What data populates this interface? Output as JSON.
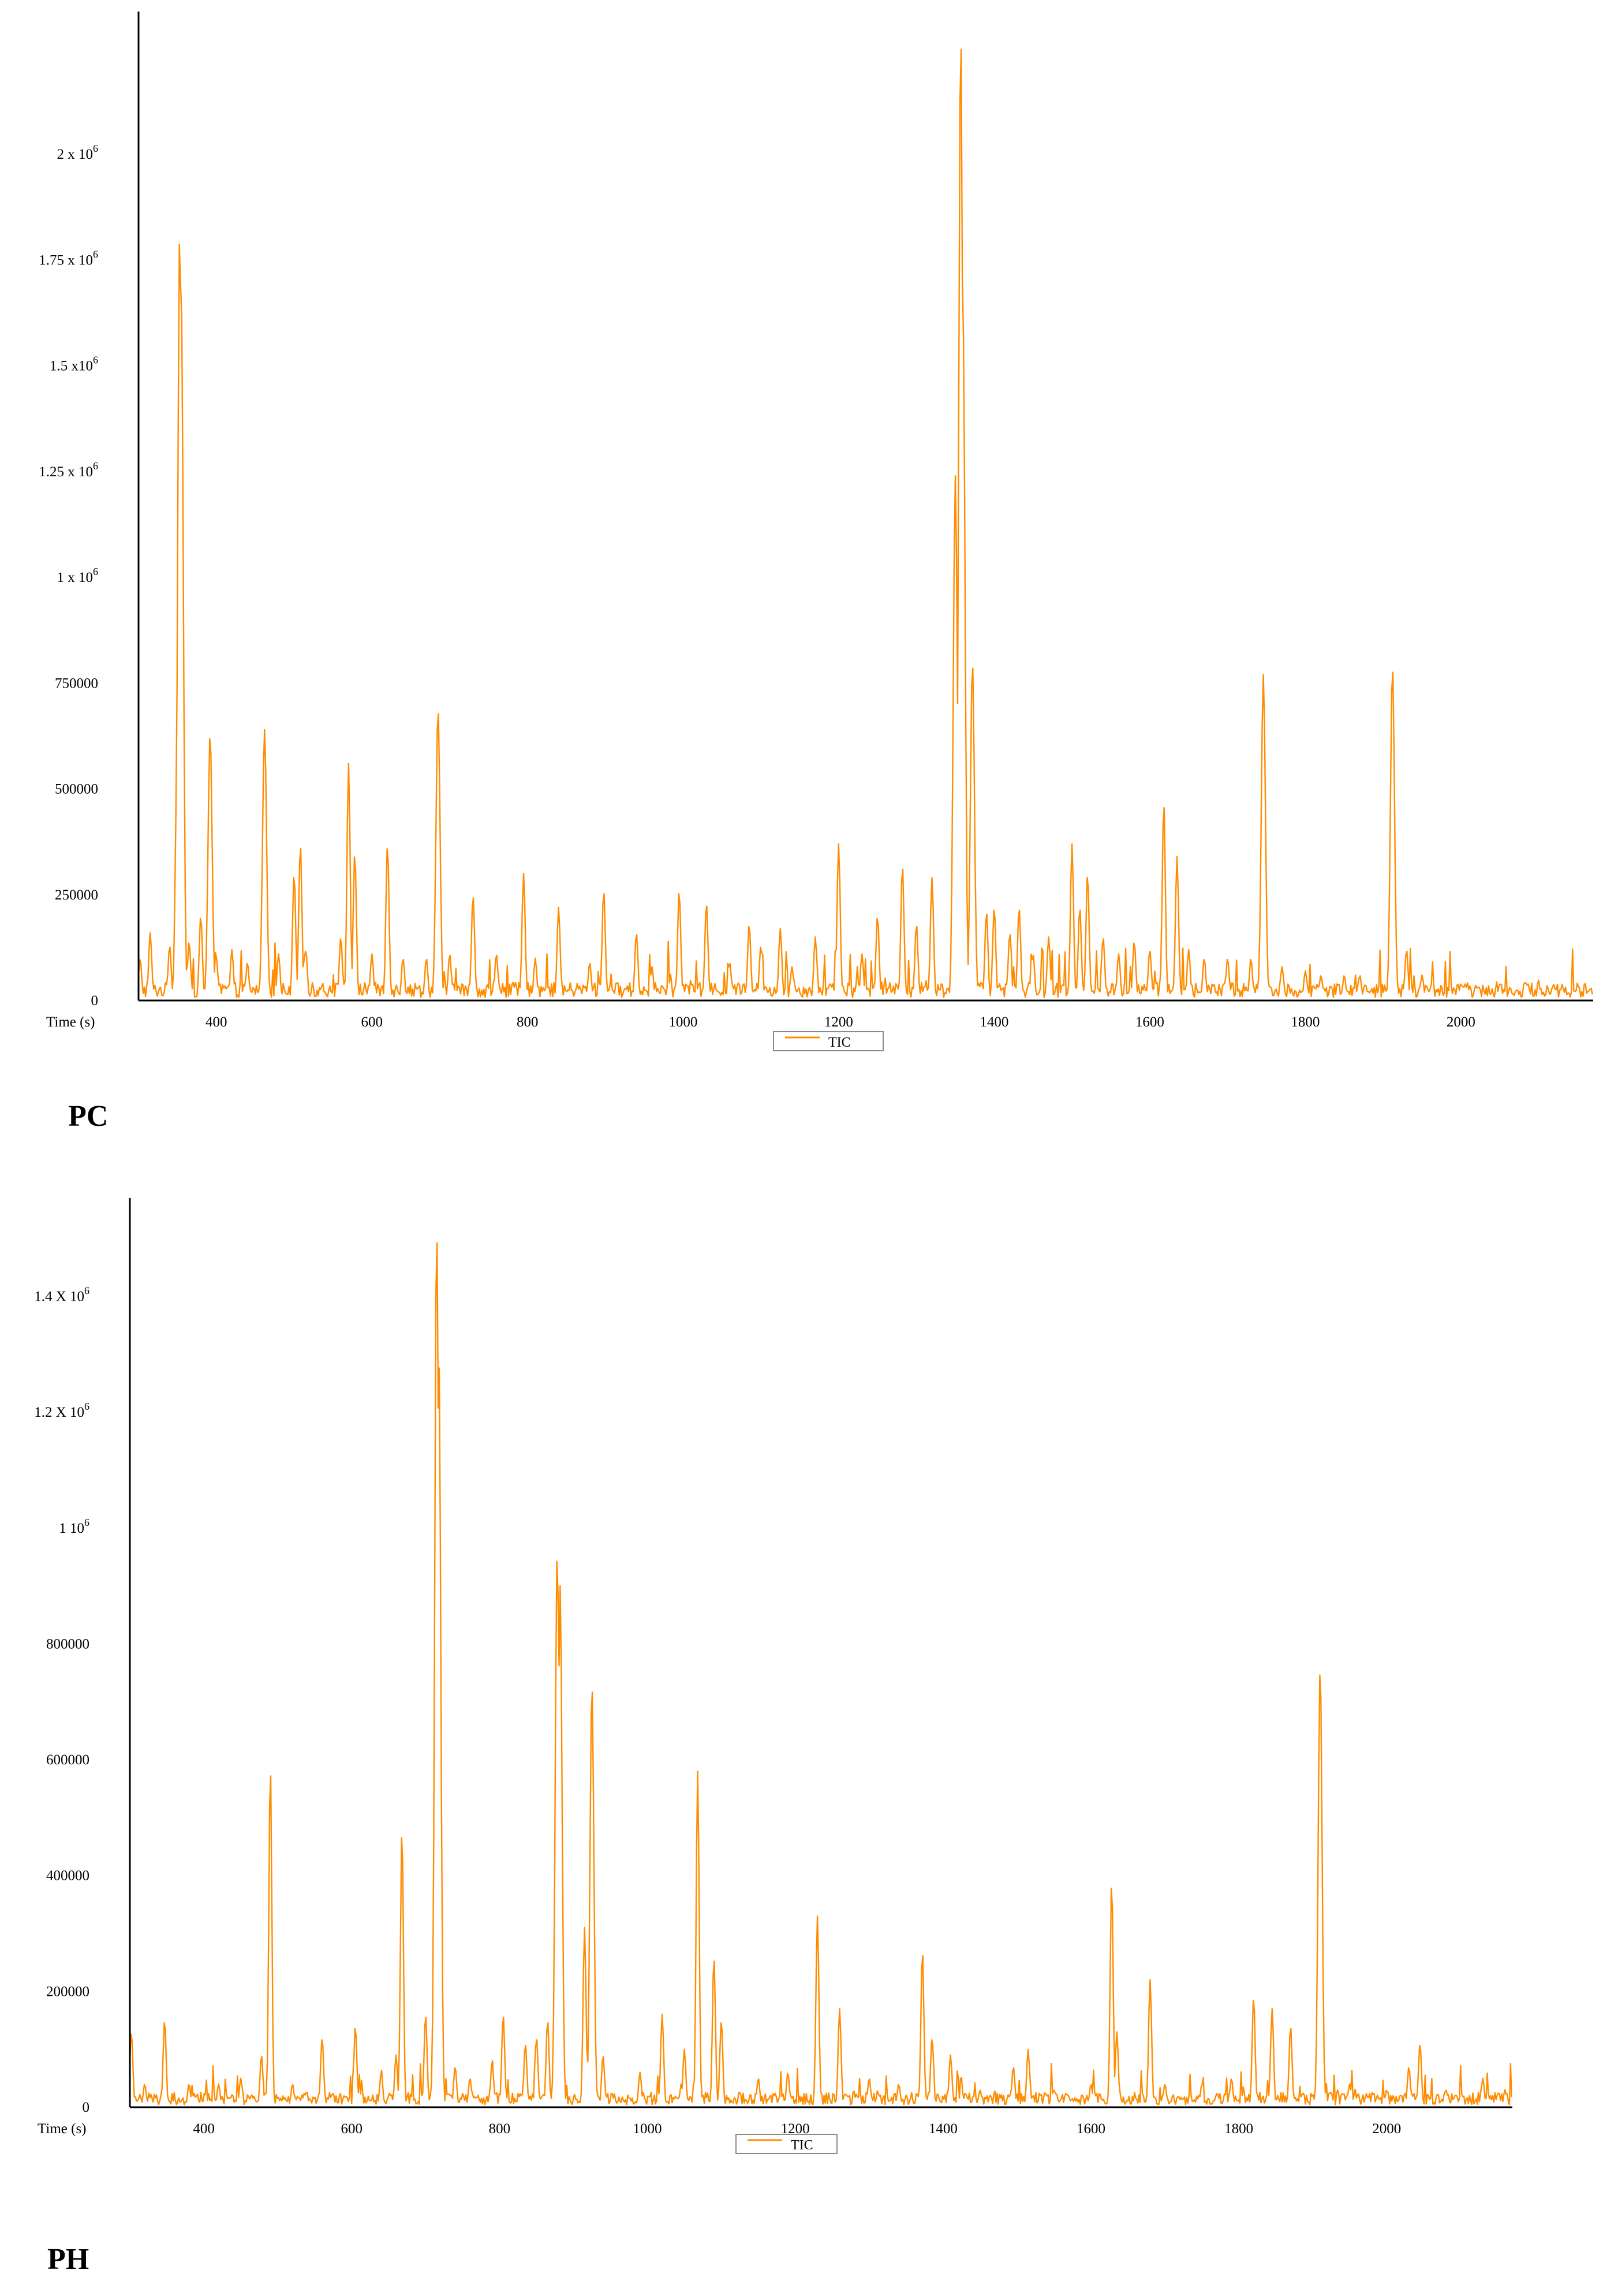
{
  "chart_data": [
    {
      "type": "line",
      "panel_label": "PC",
      "xlabel": "Time (s)",
      "xlim": [
        300,
        2170
      ],
      "ylim": [
        0,
        2310000
      ],
      "x_ticks": [
        400,
        600,
        800,
        1000,
        1200,
        1400,
        1600,
        1800,
        2000
      ],
      "y_ticks": [
        {
          "value": 0,
          "text": "0"
        },
        {
          "value": 250000,
          "text": "250000"
        },
        {
          "value": 500000,
          "text": "500000"
        },
        {
          "value": 750000,
          "text": "750000"
        },
        {
          "value": 1000000,
          "text": "1 x 10",
          "sup": "6"
        },
        {
          "value": 1250000,
          "text": "1.25 x 10",
          "sup": "6"
        },
        {
          "value": 1500000,
          "text": "1.5 x10",
          "sup": "6"
        },
        {
          "value": 1750000,
          "text": "1.75 x 10",
          "sup": "6"
        },
        {
          "value": 2000000,
          "text": "2 x 10",
          "sup": "6"
        }
      ],
      "legend": {
        "entries": [
          "TIC"
        ],
        "position": "bottom-center"
      },
      "grid": false,
      "series": [
        {
          "name": "TIC",
          "color": "#ff8c00",
          "baseline": 25000,
          "peaks": [
            [
              302,
              100000
            ],
            [
              315,
              160000
            ],
            [
              340,
              130000
            ],
            [
              349,
              500000
            ],
            [
              353,
              1820000
            ],
            [
              355,
              1650000
            ],
            [
              365,
              140000
            ],
            [
              380,
              200000
            ],
            [
              392,
              630000
            ],
            [
              400,
              100000
            ],
            [
              420,
              120000
            ],
            [
              440,
              90000
            ],
            [
              462,
              640000
            ],
            [
              480,
              110000
            ],
            [
              500,
              300000
            ],
            [
              508,
              370000
            ],
            [
              515,
              120000
            ],
            [
              560,
              150000
            ],
            [
              570,
              560000
            ],
            [
              578,
              350000
            ],
            [
              600,
              110000
            ],
            [
              620,
              370000
            ],
            [
              640,
              100000
            ],
            [
              670,
              100000
            ],
            [
              685,
              690000
            ],
            [
              700,
              110000
            ],
            [
              730,
              250000
            ],
            [
              760,
              110000
            ],
            [
              795,
              300000
            ],
            [
              810,
              100000
            ],
            [
              840,
              220000
            ],
            [
              880,
              90000
            ],
            [
              898,
              260000
            ],
            [
              940,
              160000
            ],
            [
              960,
              80000
            ],
            [
              995,
              260000
            ],
            [
              1030,
              230000
            ],
            [
              1060,
              90000
            ],
            [
              1085,
              180000
            ],
            [
              1100,
              130000
            ],
            [
              1125,
              170000
            ],
            [
              1140,
              80000
            ],
            [
              1170,
              150000
            ],
            [
              1200,
              370000
            ],
            [
              1230,
              110000
            ],
            [
              1250,
              200000
            ],
            [
              1282,
              320000
            ],
            [
              1300,
              180000
            ],
            [
              1320,
              290000
            ],
            [
              1350,
              1240000
            ],
            [
              1357,
              2290000
            ],
            [
              1360,
              1600000
            ],
            [
              1372,
              800000
            ],
            [
              1390,
              210000
            ],
            [
              1400,
              220000
            ],
            [
              1420,
              160000
            ],
            [
              1432,
              220000
            ],
            [
              1450,
              110000
            ],
            [
              1470,
              150000
            ],
            [
              1500,
              370000
            ],
            [
              1510,
              220000
            ],
            [
              1520,
              300000
            ],
            [
              1540,
              150000
            ],
            [
              1560,
              110000
            ],
            [
              1580,
              140000
            ],
            [
              1600,
              120000
            ],
            [
              1618,
              470000
            ],
            [
              1635,
              340000
            ],
            [
              1650,
              120000
            ],
            [
              1670,
              100000
            ],
            [
              1700,
              100000
            ],
            [
              1730,
              100000
            ],
            [
              1746,
              770000
            ],
            [
              1770,
              80000
            ],
            [
              1800,
              70000
            ],
            [
              1820,
              60000
            ],
            [
              1850,
              60000
            ],
            [
              1870,
              60000
            ],
            [
              1912,
              790000
            ],
            [
              1930,
              120000
            ],
            [
              1950,
              60000
            ],
            [
              2000,
              40000
            ],
            [
              2050,
              40000
            ],
            [
              2100,
              35000
            ],
            [
              2150,
              30000
            ]
          ]
        }
      ]
    },
    {
      "type": "line",
      "panel_label": "PH",
      "xlabel": "Time (s)",
      "xlim": [
        300,
        2170
      ],
      "ylim": [
        0,
        1550000
      ],
      "x_ticks": [
        400,
        600,
        800,
        1000,
        1200,
        1400,
        1600,
        1800,
        2000
      ],
      "y_ticks": [
        {
          "value": 0,
          "text": "0"
        },
        {
          "value": 200000,
          "text": "200000"
        },
        {
          "value": 400000,
          "text": "400000"
        },
        {
          "value": 600000,
          "text": "600000"
        },
        {
          "value": 800000,
          "text": "800000"
        },
        {
          "value": 1000000,
          "text": "1 10",
          "sup": "6"
        },
        {
          "value": 1200000,
          "text": "1.2 X 10",
          "sup": "6"
        },
        {
          "value": 1400000,
          "text": "1.4 X 10",
          "sup": "6"
        }
      ],
      "legend": {
        "entries": [
          "TIC"
        ],
        "position": "bottom-center"
      },
      "grid": false,
      "series": [
        {
          "name": "TIC",
          "color": "#ff8c00",
          "baseline": 15000,
          "peaks": [
            [
              302,
              130000
            ],
            [
              320,
              40000
            ],
            [
              347,
              150000
            ],
            [
              380,
              40000
            ],
            [
              420,
              40000
            ],
            [
              450,
              50000
            ],
            [
              478,
              90000
            ],
            [
              490,
              590000
            ],
            [
              520,
              40000
            ],
            [
              560,
              120000
            ],
            [
              605,
              140000
            ],
            [
              640,
              60000
            ],
            [
              660,
              90000
            ],
            [
              668,
              480000
            ],
            [
              700,
              160000
            ],
            [
              715,
              1520000
            ],
            [
              718,
              1300000
            ],
            [
              740,
              70000
            ],
            [
              760,
              50000
            ],
            [
              790,
              80000
            ],
            [
              805,
              160000
            ],
            [
              835,
              110000
            ],
            [
              850,
              120000
            ],
            [
              865,
              150000
            ],
            [
              878,
              960000
            ],
            [
              882,
              900000
            ],
            [
              915,
              310000
            ],
            [
              925,
              730000
            ],
            [
              940,
              90000
            ],
            [
              990,
              60000
            ],
            [
              1020,
              160000
            ],
            [
              1050,
              100000
            ],
            [
              1068,
              580000
            ],
            [
              1090,
              260000
            ],
            [
              1100,
              150000
            ],
            [
              1150,
              50000
            ],
            [
              1190,
              60000
            ],
            [
              1230,
              330000
            ],
            [
              1260,
              170000
            ],
            [
              1300,
              50000
            ],
            [
              1340,
              40000
            ],
            [
              1372,
              270000
            ],
            [
              1385,
              120000
            ],
            [
              1410,
              90000
            ],
            [
              1450,
              30000
            ],
            [
              1495,
              70000
            ],
            [
              1515,
              100000
            ],
            [
              1550,
              30000
            ],
            [
              1600,
              40000
            ],
            [
              1628,
              390000
            ],
            [
              1635,
              130000
            ],
            [
              1680,
              220000
            ],
            [
              1700,
              40000
            ],
            [
              1750,
              40000
            ],
            [
              1790,
              50000
            ],
            [
              1820,
              190000
            ],
            [
              1845,
              170000
            ],
            [
              1870,
              140000
            ],
            [
              1910,
              760000
            ],
            [
              1950,
              40000
            ],
            [
              2000,
              30000
            ],
            [
              2030,
              70000
            ],
            [
              2045,
              110000
            ],
            [
              2080,
              30000
            ],
            [
              2130,
              50000
            ],
            [
              2160,
              30000
            ]
          ]
        }
      ]
    }
  ]
}
